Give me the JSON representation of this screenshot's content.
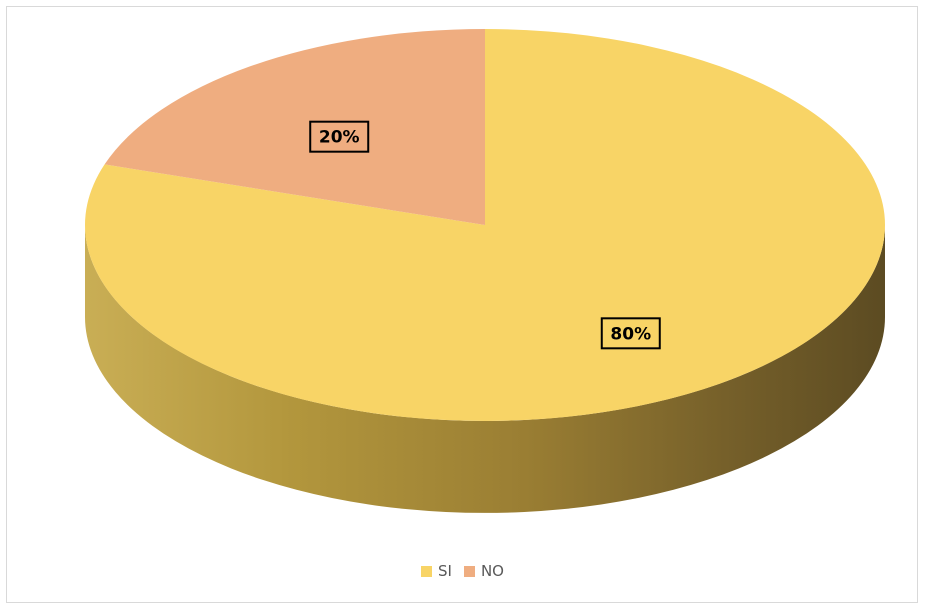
{
  "chart_data": {
    "type": "pie",
    "categories": [
      "SI",
      "NO"
    ],
    "values": [
      80,
      20
    ],
    "data_labels": [
      "80%",
      "20%"
    ],
    "colors": [
      "#F8D466",
      "#EFAD80"
    ],
    "legend_position": "bottom",
    "style": "3d"
  }
}
